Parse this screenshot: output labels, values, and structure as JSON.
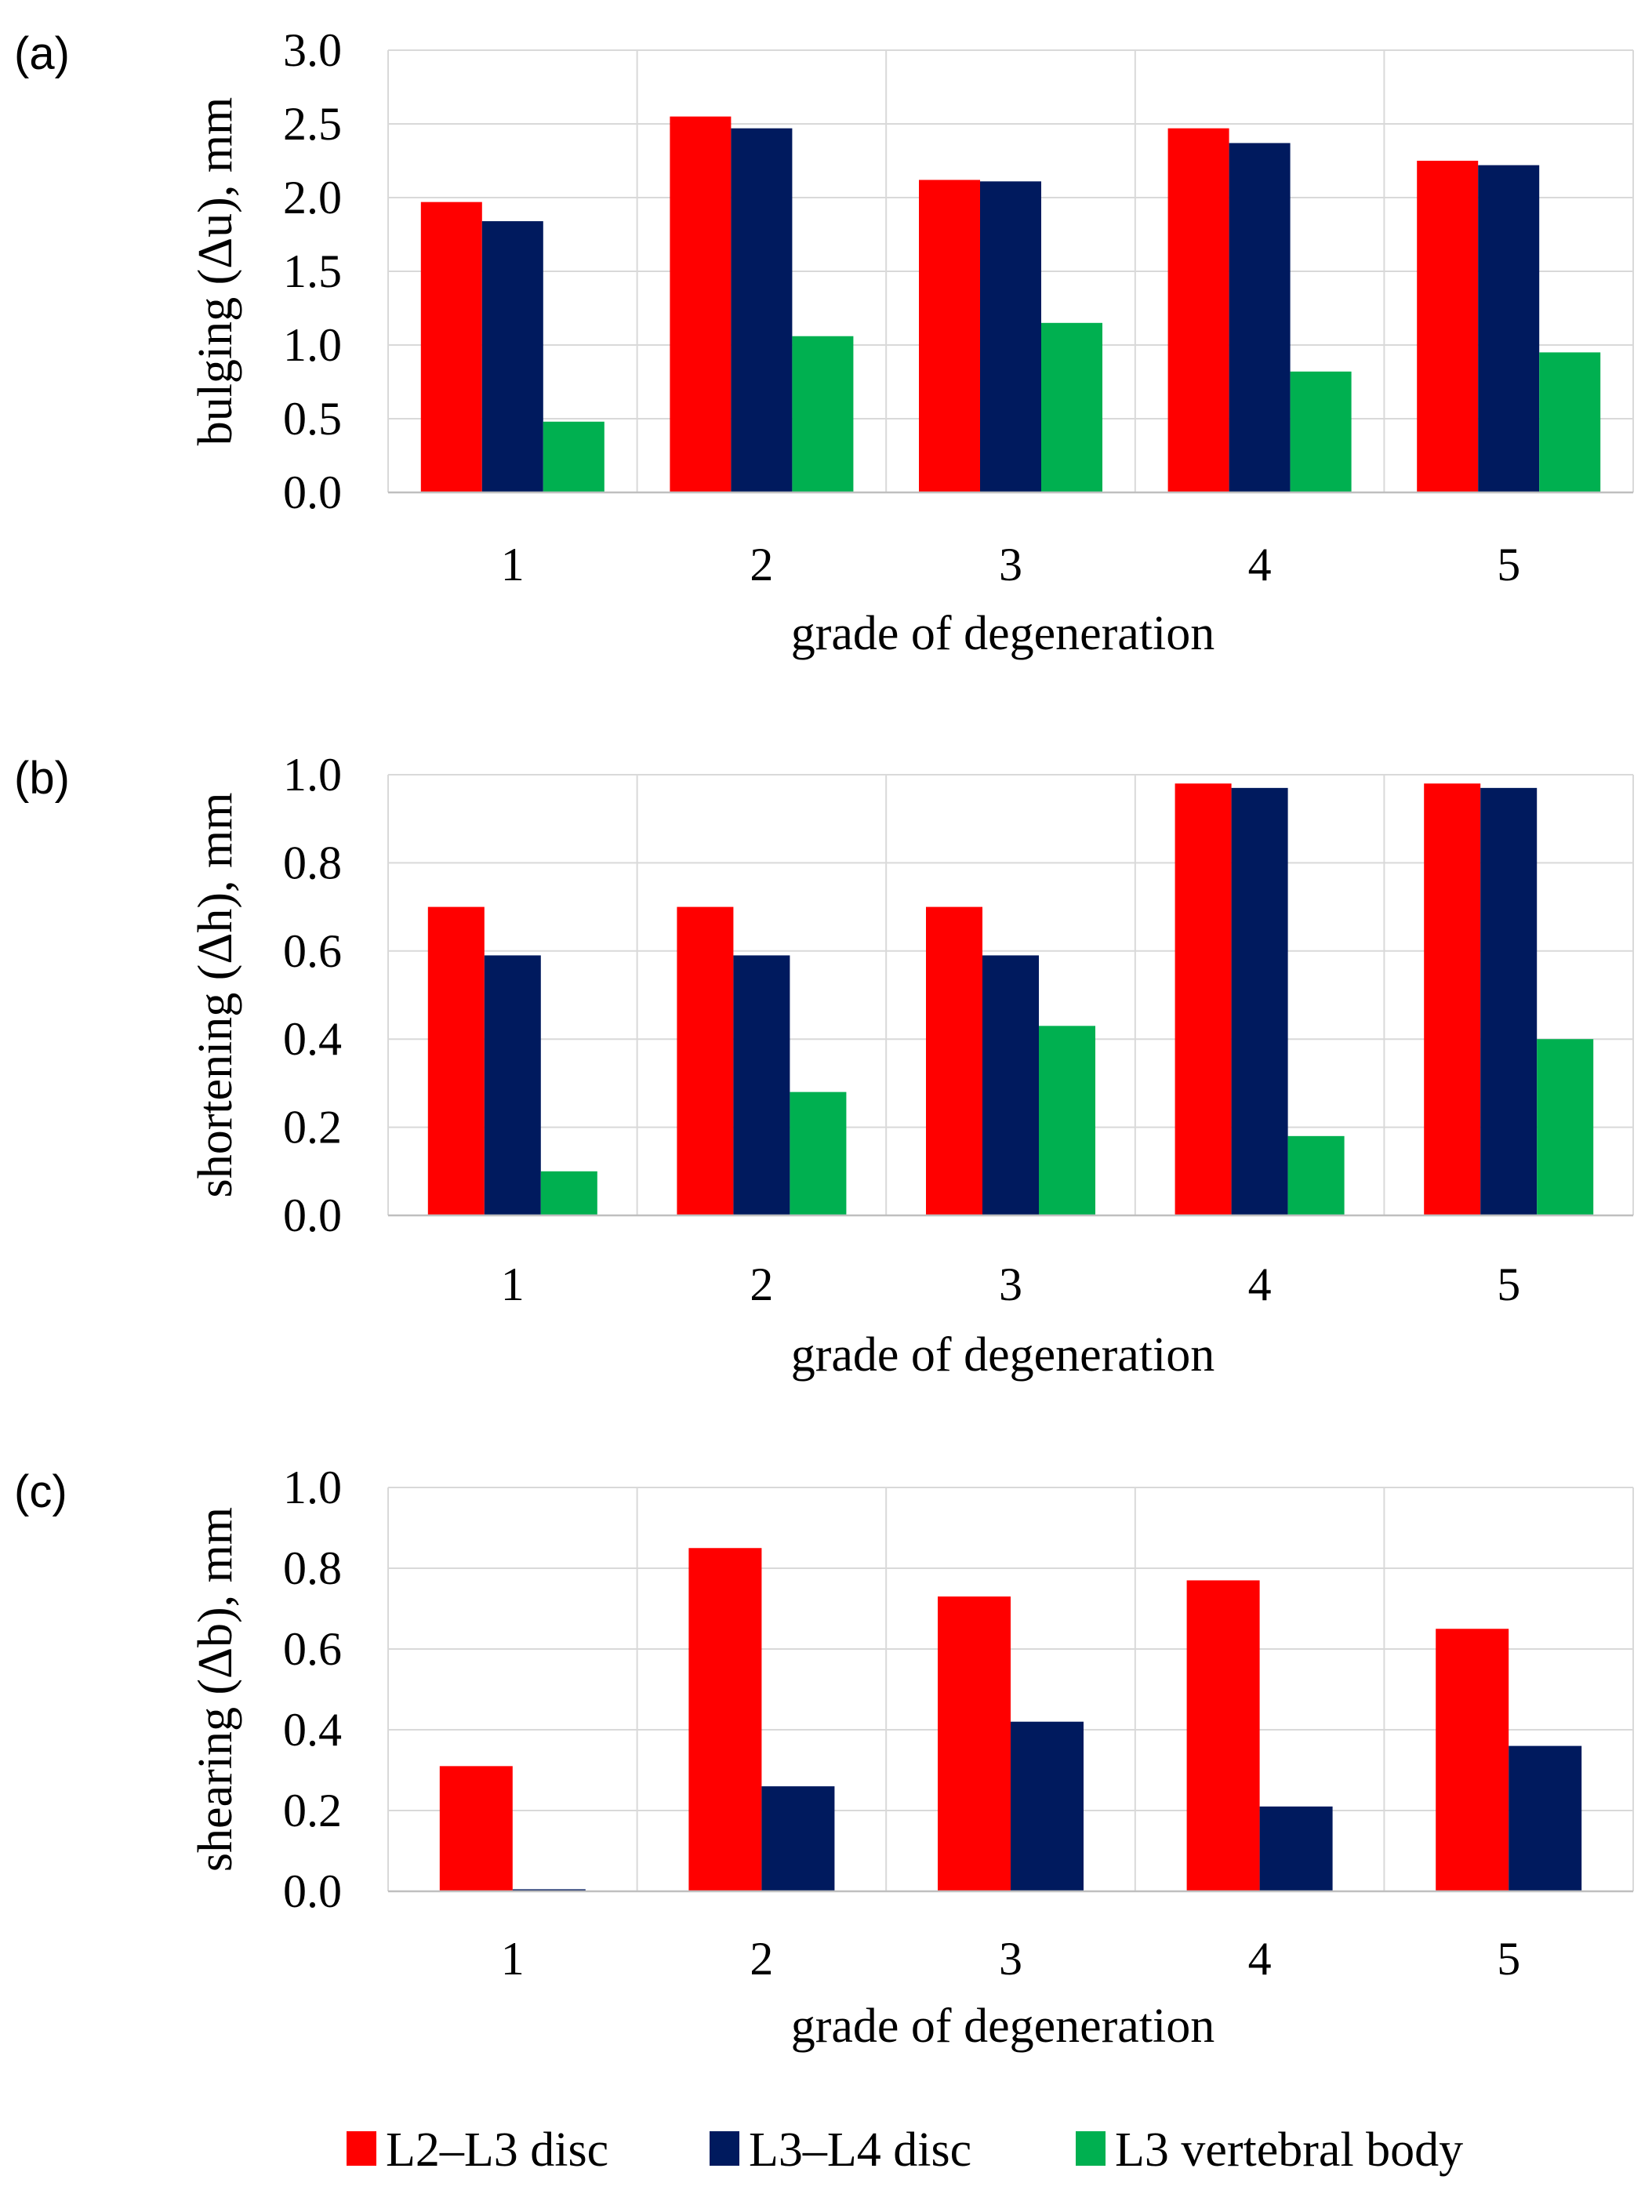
{
  "colors": {
    "series": [
      "#ff0000",
      "#001a5e",
      "#00b050"
    ]
  },
  "legend": {
    "items": [
      {
        "label": "L2–L3 disc",
        "color": "#ff0000"
      },
      {
        "label": "L3–L4 disc",
        "color": "#001a5e"
      },
      {
        "label": "L3 vertebral body",
        "color": "#00b050"
      }
    ]
  },
  "chart_data": [
    {
      "type": "bar",
      "panel": "(a)",
      "ylabel": "bulging (Δu), mm",
      "xlabel": "grade of degeneration",
      "categories": [
        "1",
        "2",
        "3",
        "4",
        "5"
      ],
      "ylim": [
        0,
        3.0
      ],
      "yticks": [
        "0.0",
        "0.5",
        "1.0",
        "1.5",
        "2.0",
        "2.5",
        "3.0"
      ],
      "series": [
        {
          "name": "L2–L3 disc",
          "values": [
            1.97,
            2.55,
            2.12,
            2.47,
            2.25
          ]
        },
        {
          "name": "L3–L4 disc",
          "values": [
            1.84,
            2.47,
            2.11,
            2.37,
            2.22
          ]
        },
        {
          "name": "L3 vertebral body",
          "values": [
            0.48,
            1.06,
            1.15,
            0.82,
            0.95
          ]
        }
      ]
    },
    {
      "type": "bar",
      "panel": "(b)",
      "ylabel": "shortening (Δh), mm",
      "xlabel": "grade of degeneration",
      "categories": [
        "1",
        "2",
        "3",
        "4",
        "5"
      ],
      "ylim": [
        0,
        1.0
      ],
      "yticks": [
        "0.0",
        "0.2",
        "0.4",
        "0.6",
        "0.8",
        "1.0"
      ],
      "series": [
        {
          "name": "L2–L3 disc",
          "values": [
            0.7,
            0.7,
            0.7,
            0.98,
            0.98
          ]
        },
        {
          "name": "L3–L4 disc",
          "values": [
            0.59,
            0.59,
            0.59,
            0.97,
            0.97
          ]
        },
        {
          "name": "L3 vertebral body",
          "values": [
            0.1,
            0.28,
            0.43,
            0.18,
            0.4
          ]
        }
      ]
    },
    {
      "type": "bar",
      "panel": "(c)",
      "ylabel": "shearing (Δb), mm",
      "xlabel": "grade of degeneration",
      "categories": [
        "1",
        "2",
        "3",
        "4",
        "5"
      ],
      "ylim": [
        0,
        1.0
      ],
      "yticks": [
        "0.0",
        "0.2",
        "0.4",
        "0.6",
        "0.8",
        "1.0"
      ],
      "series": [
        {
          "name": "L2–L3 disc",
          "values": [
            0.31,
            0.85,
            0.73,
            0.77,
            0.65
          ]
        },
        {
          "name": "L3–L4 disc",
          "values": [
            0.005,
            0.26,
            0.42,
            0.21,
            0.36
          ]
        }
      ]
    }
  ]
}
